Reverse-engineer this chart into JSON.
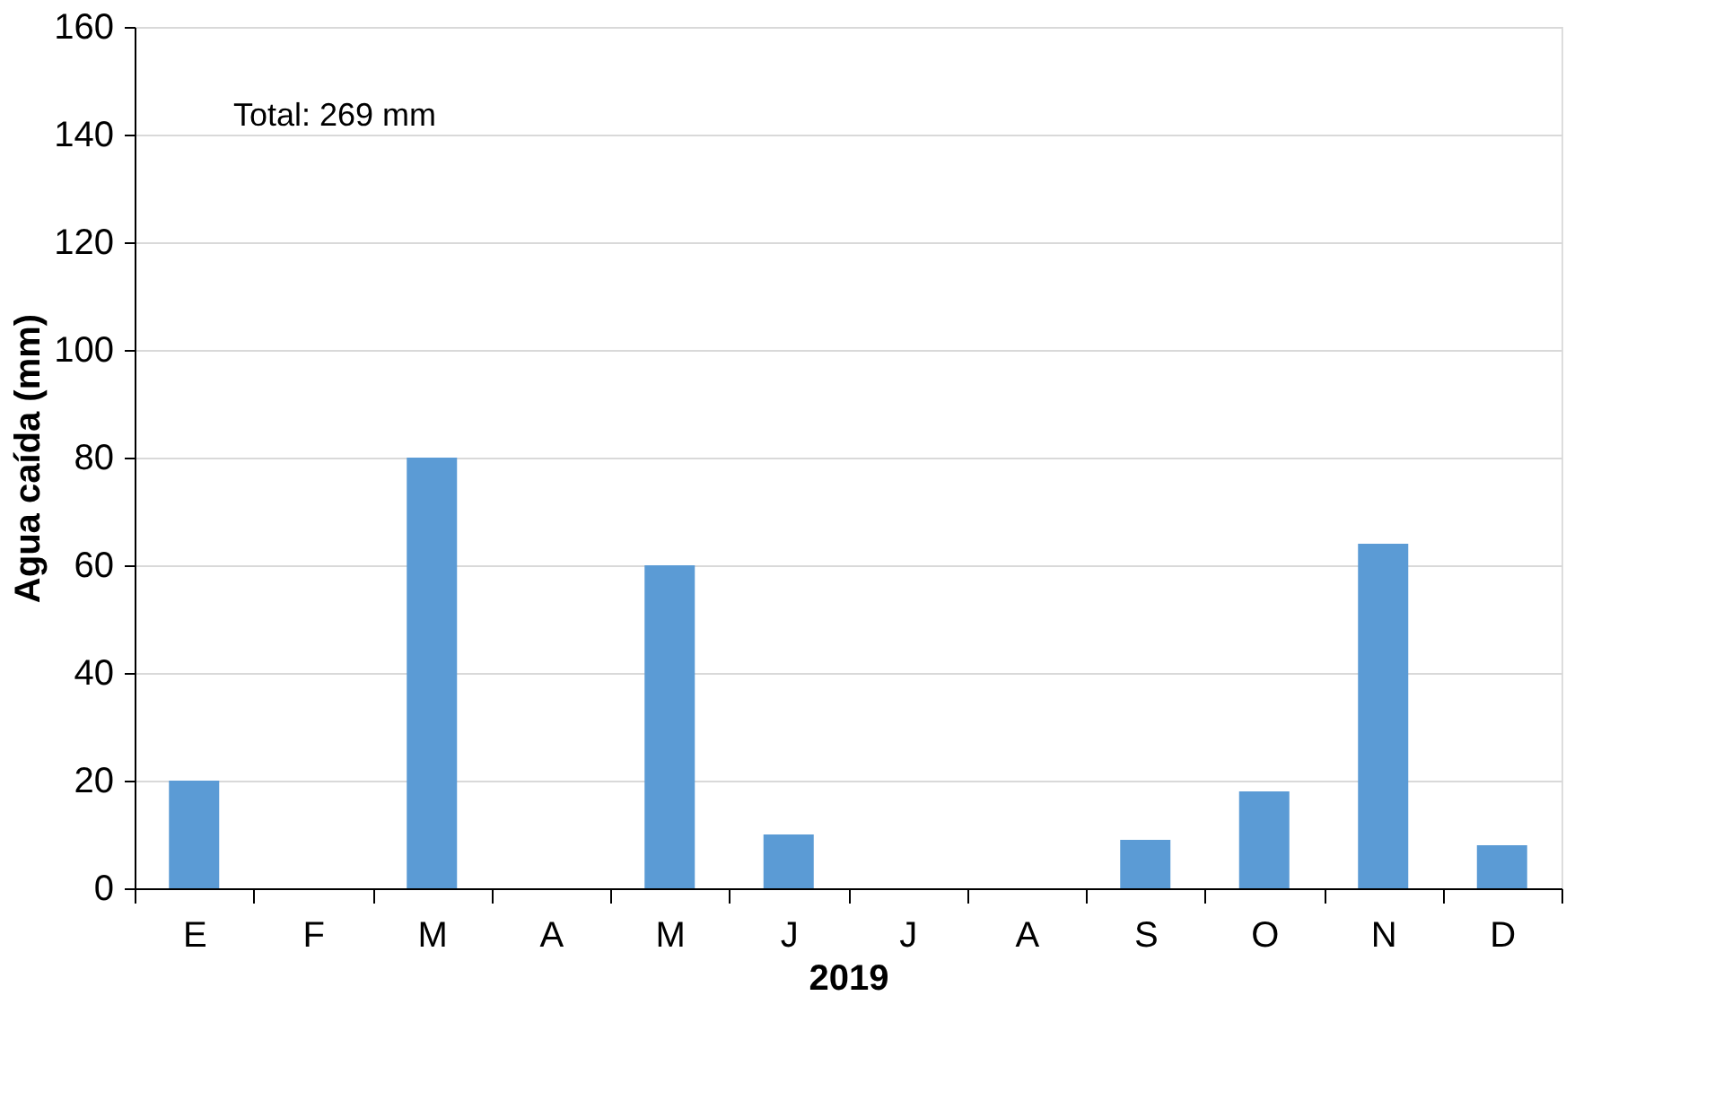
{
  "chart_data": {
    "type": "bar",
    "categories": [
      "E",
      "F",
      "M",
      "A",
      "M",
      "J",
      "J",
      "A",
      "S",
      "O",
      "N",
      "D"
    ],
    "values": [
      20,
      0,
      80,
      0,
      60,
      10,
      0,
      0,
      9,
      18,
      64,
      8
    ],
    "color": "#5b9bd5",
    "xlabel": "2019",
    "ylabel": "Agua caída (mm)",
    "ylim": [
      0,
      160
    ],
    "yticks": [
      0,
      20,
      40,
      60,
      80,
      100,
      120,
      140,
      160
    ],
    "grid": "y",
    "annotations": [
      {
        "text": "Total: 269 mm"
      }
    ]
  }
}
